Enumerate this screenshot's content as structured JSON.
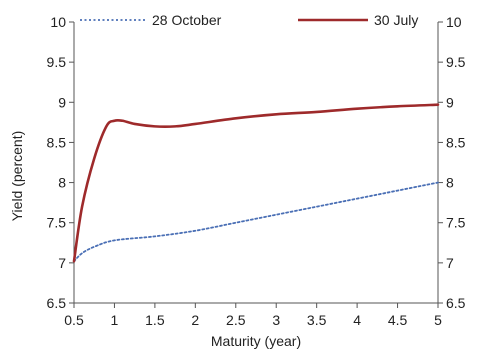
{
  "chart_data": {
    "type": "line",
    "xlabel": "Maturity (year)",
    "ylabel": "Yield (percent)",
    "xlim": [
      0.5,
      5
    ],
    "ylim": [
      6.5,
      10
    ],
    "x_ticks": [
      "0.5",
      "1",
      "1.5",
      "2",
      "2.5",
      "3",
      "3.5",
      "4",
      "4.5",
      "5"
    ],
    "y_ticks_left": [
      "6.5",
      "7",
      "7.5",
      "8",
      "8.5",
      "9",
      "9.5",
      "10"
    ],
    "y_ticks_right": [
      "6.5",
      "7",
      "7.5",
      "8",
      "8.5",
      "9",
      "9.5",
      "10"
    ],
    "grid": false,
    "legend_position": "top",
    "series": [
      {
        "name": "28 October",
        "color": "#4a6fb5",
        "style": "dotted",
        "x": [
          0.5,
          0.6,
          0.75,
          1,
          1.5,
          2,
          2.5,
          3,
          3.5,
          4,
          4.5,
          5
        ],
        "y": [
          7.02,
          7.12,
          7.2,
          7.28,
          7.33,
          7.4,
          7.5,
          7.6,
          7.7,
          7.8,
          7.9,
          8.0
        ]
      },
      {
        "name": "30 July",
        "color": "#9e2a2b",
        "style": "solid",
        "x": [
          0.5,
          0.6,
          0.75,
          0.9,
          1,
          1.1,
          1.25,
          1.5,
          1.75,
          2,
          2.5,
          3,
          3.5,
          4,
          4.5,
          5
        ],
        "y": [
          7.02,
          7.7,
          8.3,
          8.7,
          8.77,
          8.77,
          8.73,
          8.7,
          8.7,
          8.73,
          8.8,
          8.85,
          8.88,
          8.92,
          8.95,
          8.97
        ]
      }
    ]
  }
}
